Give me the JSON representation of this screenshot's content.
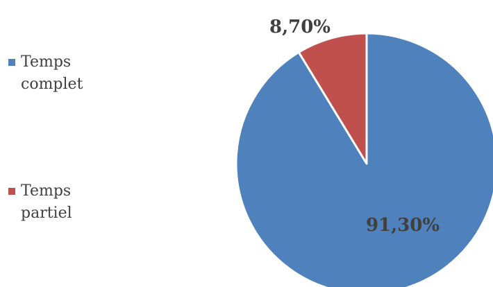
{
  "chart_data": {
    "type": "pie",
    "categories": [
      "Temps complet",
      "Temps partiel"
    ],
    "values": [
      91.3,
      8.7
    ],
    "value_labels": [
      "91,30%",
      "8,70%"
    ],
    "colors": [
      "#4f81bd",
      "#c0504d"
    ],
    "legend_position": "left",
    "title": ""
  }
}
